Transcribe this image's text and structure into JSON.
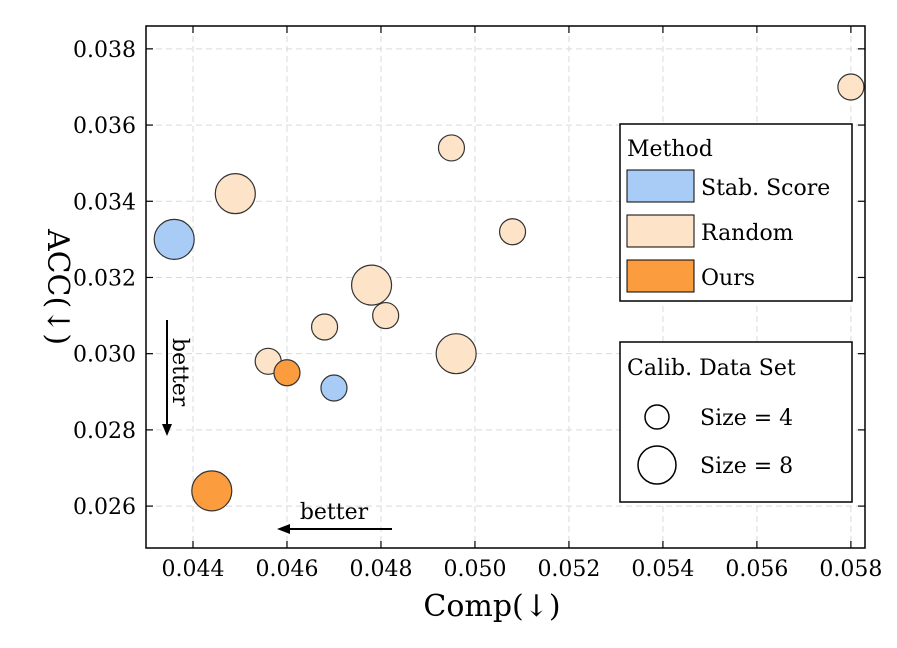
{
  "chart_data": {
    "type": "scatter",
    "title": "",
    "xlabel": "Comp(↓)",
    "ylabel": "ACC(↓)",
    "xlim": [
      0.043,
      0.0583
    ],
    "ylim": [
      0.0249,
      0.0386
    ],
    "xticks": [
      "0.044",
      "0.046",
      "0.048",
      "0.050",
      "0.052",
      "0.054",
      "0.056",
      "0.058"
    ],
    "yticks": [
      "0.026",
      "0.028",
      "0.030",
      "0.032",
      "0.034",
      "0.036",
      "0.038"
    ],
    "xtick_values": [
      0.044,
      0.046,
      0.048,
      0.05,
      0.052,
      0.054,
      0.056,
      0.058
    ],
    "ytick_values": [
      0.026,
      0.028,
      0.03,
      0.032,
      0.034,
      0.036,
      0.038
    ],
    "grid": true,
    "series": [
      {
        "name": "Stab. Score",
        "color": "#a9ccf7",
        "points": [
          {
            "x": 0.0436,
            "y": 0.033,
            "size": 8
          },
          {
            "x": 0.047,
            "y": 0.0291,
            "size": 4
          }
        ]
      },
      {
        "name": "Random",
        "color": "#fde3c7",
        "points": [
          {
            "x": 0.058,
            "y": 0.037,
            "size": 4
          },
          {
            "x": 0.0495,
            "y": 0.0354,
            "size": 4
          },
          {
            "x": 0.0449,
            "y": 0.0342,
            "size": 8
          },
          {
            "x": 0.0508,
            "y": 0.0332,
            "size": 4
          },
          {
            "x": 0.0478,
            "y": 0.0318,
            "size": 8
          },
          {
            "x": 0.0481,
            "y": 0.031,
            "size": 4
          },
          {
            "x": 0.0468,
            "y": 0.0307,
            "size": 4
          },
          {
            "x": 0.0456,
            "y": 0.0298,
            "size": 4
          },
          {
            "x": 0.0496,
            "y": 0.03,
            "size": 8
          }
        ]
      },
      {
        "name": "Ours",
        "color": "#fb9c3f",
        "points": [
          {
            "x": 0.046,
            "y": 0.0295,
            "size": 4
          },
          {
            "x": 0.0444,
            "y": 0.0264,
            "size": 8
          }
        ]
      }
    ],
    "legend_method": {
      "title": "Method",
      "placement": "right",
      "entries": [
        "Stab. Score",
        "Random",
        "Ours"
      ]
    },
    "legend_size": {
      "title": "Calib. Data Set",
      "placement": "bottom-right",
      "entries": [
        {
          "label": "Size = 4",
          "size": 4
        },
        {
          "label": "Size = 8",
          "size": 8
        }
      ]
    },
    "annotations": [
      {
        "text": "better",
        "direction": "down"
      },
      {
        "text": "better",
        "direction": "left"
      }
    ]
  }
}
